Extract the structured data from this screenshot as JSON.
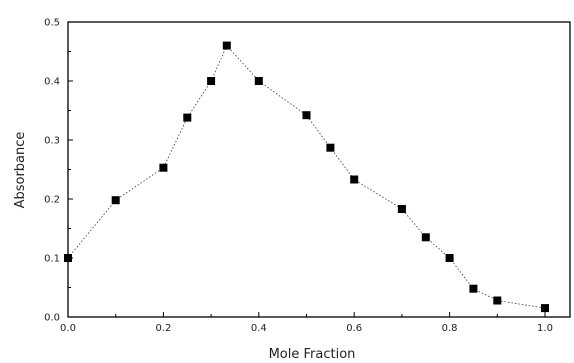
{
  "chart_data": {
    "type": "line",
    "title": "",
    "xlabel": "Mole Fraction",
    "ylabel": "Absorbance",
    "xlim": [
      0.0,
      1.0
    ],
    "ylim": [
      0.0,
      0.5
    ],
    "x_ticks": [
      "0.0",
      "0.2",
      "0.4",
      "0.6",
      "0.8",
      "1.0"
    ],
    "y_ticks": [
      "0.0",
      "0.1",
      "0.2",
      "0.3",
      "0.4",
      "0.5"
    ],
    "grid": false,
    "line_style": "dotted",
    "marker": "square",
    "color": "#000000",
    "series": [
      {
        "x": [
          0.0,
          0.1,
          0.2,
          0.25,
          0.3,
          0.333,
          0.4,
          0.5,
          0.55,
          0.6,
          0.7,
          0.75,
          0.8,
          0.85,
          0.9,
          1.0
        ],
        "values": [
          0.1,
          0.198,
          0.253,
          0.338,
          0.4,
          0.46,
          0.4,
          0.342,
          0.287,
          0.233,
          0.183,
          0.135,
          0.1,
          0.048,
          0.028,
          0.015
        ]
      }
    ]
  }
}
